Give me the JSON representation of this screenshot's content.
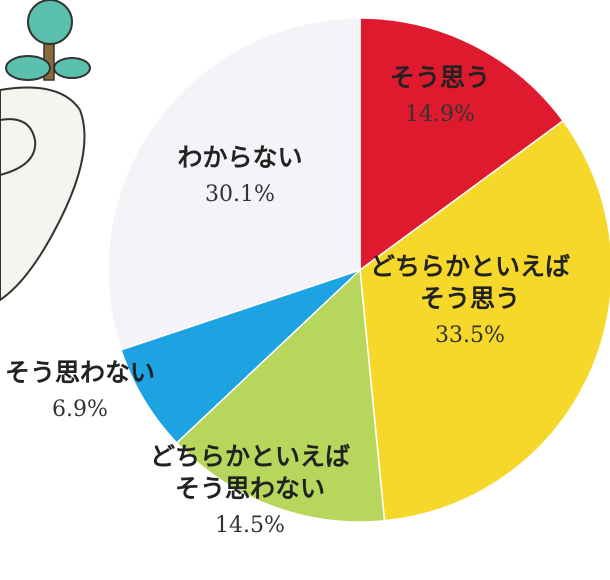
{
  "chart_data": {
    "type": "pie",
    "categories": [
      [
        "そう思う"
      ],
      [
        "どちらかといえば",
        "そう思う"
      ],
      [
        "どちらかといえば",
        "そう思わない"
      ],
      [
        "そう思わない"
      ],
      [
        "わからない"
      ]
    ],
    "values": [
      14.9,
      33.5,
      14.5,
      6.9,
      30.1
    ],
    "value_labels": [
      "14.9%",
      "33.5%",
      "14.5%",
      "6.9%",
      "30.1%"
    ],
    "colors": [
      "#e01a2e",
      "#f6d82b",
      "#b6d65c",
      "#1ea3e2",
      "#f3f3f8"
    ]
  }
}
